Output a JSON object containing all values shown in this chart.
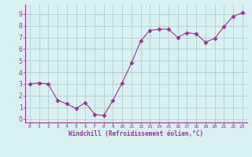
{
  "x": [
    0,
    1,
    2,
    3,
    4,
    5,
    6,
    7,
    8,
    9,
    10,
    11,
    12,
    13,
    14,
    15,
    16,
    17,
    18,
    19,
    20,
    21,
    22,
    23
  ],
  "y": [
    3.0,
    3.1,
    3.0,
    1.6,
    1.3,
    0.9,
    1.4,
    0.4,
    0.3,
    1.6,
    3.1,
    4.8,
    6.7,
    7.6,
    7.7,
    7.7,
    7.0,
    7.4,
    7.3,
    6.6,
    6.9,
    7.9,
    8.8,
    9.1
  ],
  "line_color": "#993399",
  "marker": "D",
  "marker_size": 2.5,
  "bg_color": "#d8f0f0",
  "grid_color": "#b0cece",
  "xlabel": "Windchill (Refroidissement éolien,°C)",
  "xlim": [
    -0.5,
    23.5
  ],
  "ylim": [
    -0.3,
    9.8
  ],
  "xticks": [
    0,
    1,
    2,
    3,
    4,
    5,
    6,
    7,
    8,
    9,
    10,
    11,
    12,
    13,
    14,
    15,
    16,
    17,
    18,
    19,
    20,
    21,
    22,
    23
  ],
  "yticks": [
    0,
    1,
    2,
    3,
    4,
    5,
    6,
    7,
    8,
    9
  ],
  "axis_color": "#993399",
  "tick_color": "#993399",
  "label_color": "#993399"
}
